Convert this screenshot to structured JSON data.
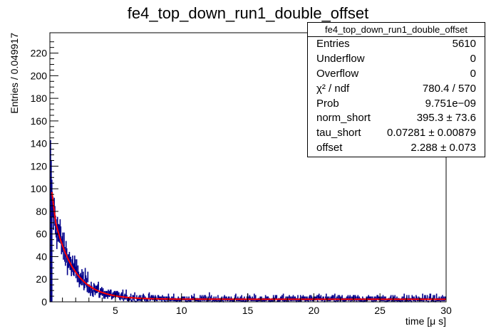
{
  "chart_data": {
    "type": "histogram",
    "title": "fe4_top_down_run1_double_offset",
    "xlabel": "time [μ s]",
    "ylabel": "Entries / 0.049917",
    "xlim": [
      0.05,
      30
    ],
    "ylim": [
      0,
      238
    ],
    "x_ticks": [
      "5",
      "10",
      "15",
      "20",
      "25",
      "30"
    ],
    "y_ticks": [
      "0",
      "20",
      "40",
      "60",
      "80",
      "100",
      "120",
      "140",
      "160",
      "180",
      "200",
      "220"
    ],
    "bin_width": 0.049917,
    "hist_color": "#00008b",
    "fit_color": "#ff0000",
    "fit": {
      "norm_short": 395.3,
      "tau_short": 0.07281,
      "offset": 2.288,
      "long_amp": 95,
      "long_tau": 1.45
    },
    "stats": {
      "name": "fe4_top_down_run1_double_offset",
      "rows": [
        {
          "label": "Entries",
          "value": "5610"
        },
        {
          "label": "Underflow",
          "value": "0"
        },
        {
          "label": "Overflow",
          "value": "0"
        },
        {
          "label": "χ² / ndf",
          "value": "780.4 / 570"
        },
        {
          "label": "Prob",
          "value": "9.751e−09"
        },
        {
          "label": "norm_short",
          "value": "395.3 ± 73.6"
        },
        {
          "label": "tau_short",
          "value": "0.07281 ± 0.00879"
        },
        {
          "label": "offset",
          "value": "2.288 ± 0.073"
        }
      ]
    }
  }
}
